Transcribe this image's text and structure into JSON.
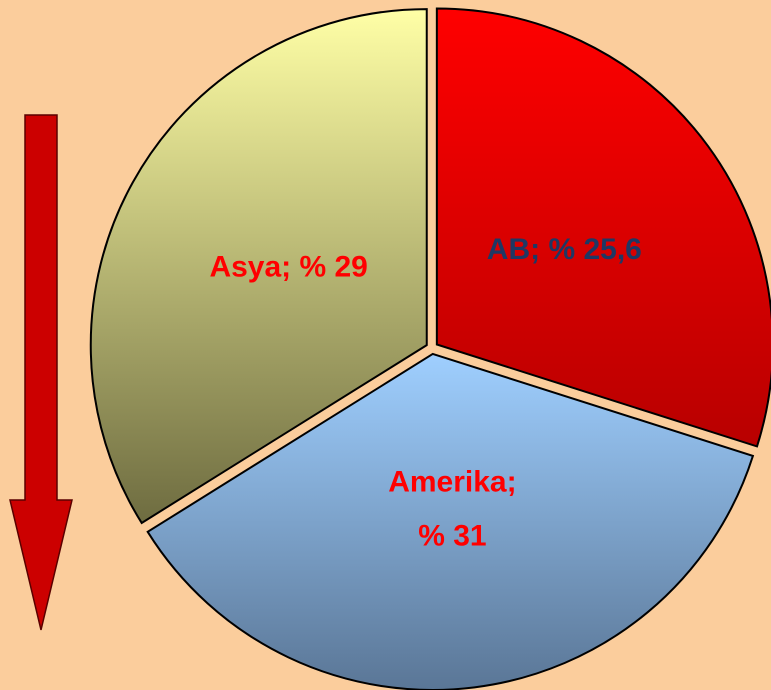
{
  "chart_data": {
    "type": "pie",
    "categories": [
      "AB",
      "Amerika",
      "Asya"
    ],
    "values": [
      25.6,
      31,
      29
    ],
    "labels": [
      [
        "AB; % 25,6"
      ],
      [
        "Amerika;",
        "% 31"
      ],
      [
        "Asya; % 29"
      ]
    ],
    "label_colors": [
      "#1f3864",
      "#ff0000",
      "#ff0000"
    ],
    "colors": [
      [
        "#ff0000",
        "#b80000"
      ],
      [
        "#9fcfff",
        "#5a7696"
      ],
      [
        "#ffffa6",
        "#6e6c40"
      ]
    ]
  }
}
